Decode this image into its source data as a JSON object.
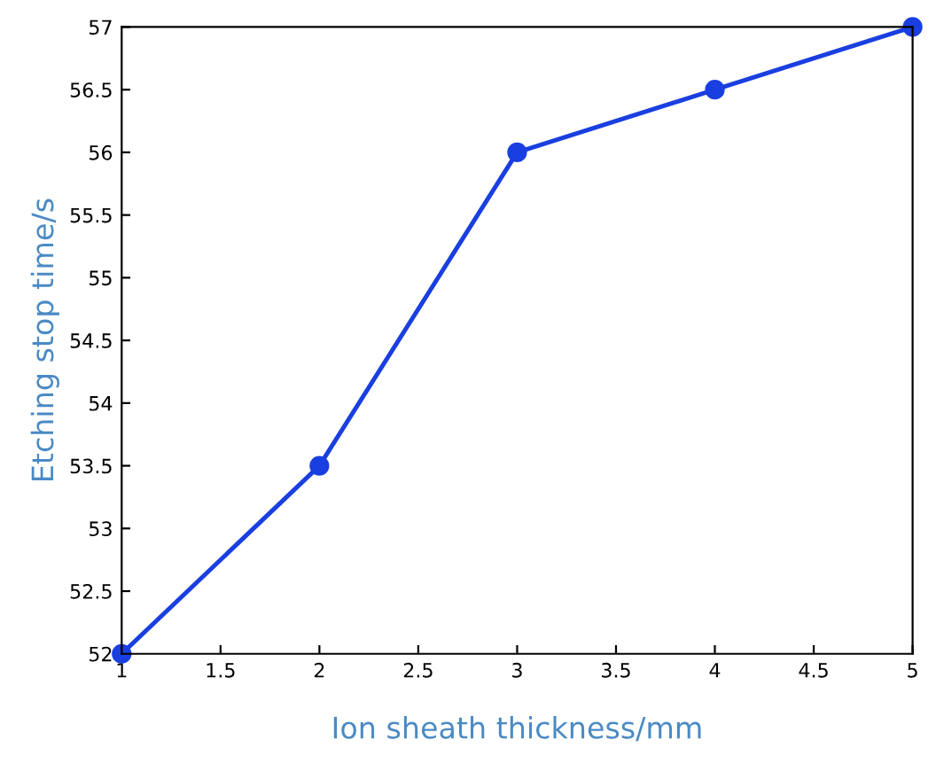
{
  "chart_data": {
    "type": "line",
    "xlabel": "Ion sheath thickness/mm",
    "ylabel": "Etching stop time/s",
    "x": [
      1,
      2,
      3,
      4,
      5
    ],
    "series": [
      {
        "color": "#1a3fe0",
        "values": [
          52,
          53.5,
          56,
          56.5,
          57
        ]
      }
    ],
    "xlim": [
      1,
      5
    ],
    "ylim": [
      52,
      57
    ],
    "xticks": [
      1,
      1.5,
      2,
      2.5,
      3,
      3.5,
      4,
      4.5,
      5
    ],
    "yticks": [
      52,
      52.5,
      53,
      53.5,
      54,
      54.5,
      55,
      55.5,
      56,
      56.5,
      57
    ],
    "grid": false,
    "legend": false,
    "marker": "circle",
    "line_style": "solid"
  }
}
